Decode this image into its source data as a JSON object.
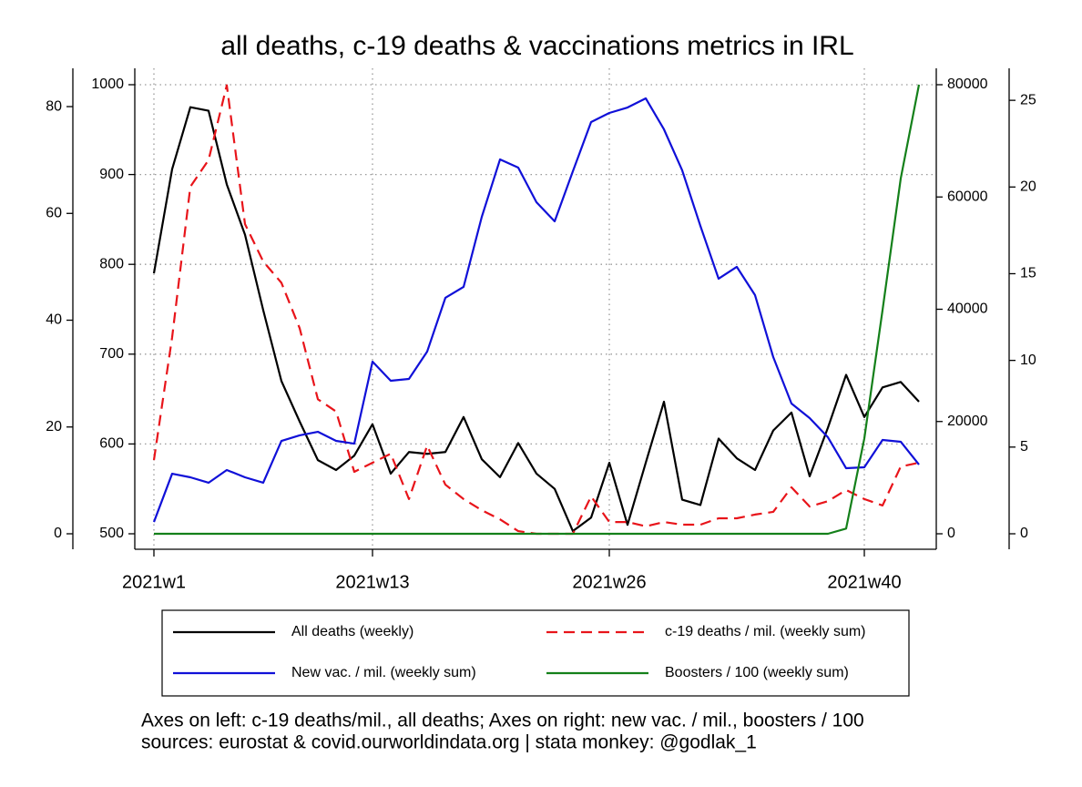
{
  "chart_data": {
    "type": "line",
    "title": "all deaths, c-19 deaths & vaccinations metrics in IRL",
    "x": [
      1,
      2,
      3,
      4,
      5,
      6,
      7,
      8,
      9,
      10,
      11,
      12,
      13,
      14,
      15,
      16,
      17,
      18,
      19,
      20,
      21,
      22,
      23,
      24,
      25,
      26,
      27,
      28,
      29,
      30,
      31,
      32,
      33,
      34,
      35,
      36,
      37,
      38,
      39,
      40,
      41,
      42,
      43
    ],
    "xlim": [
      0,
      44
    ],
    "xticks": [
      {
        "value": 1,
        "label": "2021w1"
      },
      {
        "value": 13,
        "label": "2021w13"
      },
      {
        "value": 26,
        "label": "2021w26"
      },
      {
        "value": 40,
        "label": "2021w40"
      }
    ],
    "ylim": [
      500,
      1000
    ],
    "yticks": [
      500,
      600,
      700,
      800,
      900,
      1000
    ],
    "y3lim": [
      0,
      84.1
    ],
    "y3ticks": [
      0,
      20,
      40,
      60,
      80
    ],
    "y2lim": [
      0,
      80000
    ],
    "y2ticks": [
      0,
      20000,
      40000,
      60000,
      80000
    ],
    "y4lim": [
      0,
      25.9
    ],
    "y4ticks": [
      0,
      5,
      10,
      15,
      20,
      25
    ],
    "grid": true,
    "series": [
      {
        "name": "All deaths (weekly)",
        "color": "#000000",
        "axis": "y",
        "dash": false,
        "values": [
          790,
          906,
          975,
          971,
          889,
          833,
          749,
          670,
          625,
          582,
          571,
          587,
          622,
          567,
          591,
          589,
          591,
          630,
          583,
          563,
          601,
          567,
          550,
          503,
          518,
          579,
          510,
          579,
          647,
          538,
          532,
          606,
          584,
          571,
          615,
          635,
          564,
          618,
          677,
          630,
          663,
          669,
          647
        ]
      },
      {
        "name": "c-19 deaths / mil. (weekly sum)",
        "color": "#e8141a",
        "axis": "y3",
        "dash": true,
        "values": [
          13.8,
          36.8,
          65,
          70,
          84,
          58,
          51,
          47,
          38.5,
          25.2,
          22.9,
          11.6,
          13.3,
          15,
          6.5,
          16.5,
          9.2,
          6.5,
          4.4,
          2.7,
          0.5,
          0,
          0,
          0,
          7,
          2.2,
          2.2,
          1.4,
          2.2,
          1.7,
          1.7,
          2.9,
          2.9,
          3.6,
          4.1,
          8.7,
          5.1,
          6.1,
          8.2,
          6.5,
          5.3,
          12.6,
          13.3
        ]
      },
      {
        "name": "New vac. / mil. (weekly sum)",
        "color": "#1010d8",
        "axis": "y2",
        "dash": false,
        "values": [
          2100,
          10700,
          10060,
          9090,
          11360,
          10060,
          9090,
          16550,
          17530,
          18170,
          16550,
          16060,
          30670,
          27260,
          27590,
          32450,
          42030,
          43980,
          56470,
          66690,
          65230,
          59070,
          55660,
          64580,
          73350,
          74970,
          75940,
          77570,
          72050,
          64750,
          54850,
          45440,
          47550,
          42510,
          31480,
          23200,
          20610,
          17200,
          11680,
          11850,
          16710,
          16390,
          12330
        ]
      },
      {
        "name": "Boosters / 100 (weekly sum)",
        "color": "#14801a",
        "axis": "y4",
        "dash": false,
        "values": [
          0,
          0,
          0,
          0,
          0,
          0,
          0,
          0,
          0,
          0,
          0,
          0,
          0,
          0,
          0,
          0,
          0,
          0,
          0,
          0,
          0,
          0,
          0,
          0,
          0,
          0,
          0,
          0,
          0,
          0,
          0,
          0,
          0,
          0,
          0,
          0,
          0,
          0,
          0.3,
          5.5,
          12.9,
          20.5,
          25.9
        ]
      }
    ],
    "notes": [
      "Axes on left: c-19 deaths/mil., all deaths; Axes on right: new vac. / mil., boosters / 100",
      "sources: eurostat & covid.ourworldindata.org | stata monkey: @godlak_1"
    ]
  }
}
